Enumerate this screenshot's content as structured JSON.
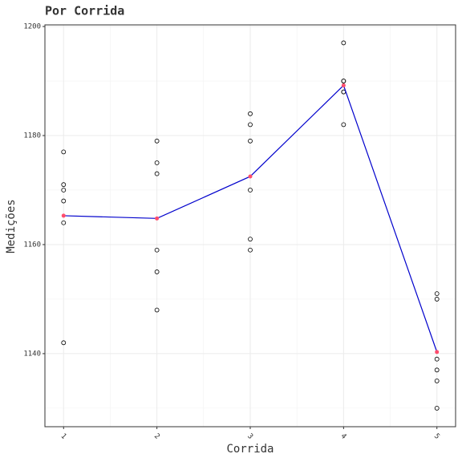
{
  "chart_data": {
    "type": "scatter",
    "title": "Por Corrida",
    "x_label": "Corrida",
    "y_label": "Medições",
    "x": [
      1,
      1,
      1,
      1,
      1,
      1,
      2,
      2,
      2,
      2,
      2,
      2,
      3,
      3,
      3,
      3,
      3,
      3,
      4,
      4,
      4,
      4,
      4,
      4,
      5,
      5,
      5,
      5,
      5,
      5
    ],
    "y": [
      1177,
      1171,
      1170,
      1168,
      1164,
      1142,
      1179,
      1175,
      1173,
      1159,
      1155,
      1148,
      1184,
      1182,
      1179,
      1170,
      1161,
      1159,
      1197,
      1190,
      1190,
      1188,
      1188,
      1182,
      1151,
      1150,
      1139,
      1137,
      1135,
      1130
    ],
    "point_color": "#000000",
    "mean_x": [
      1,
      2,
      3,
      4,
      5
    ],
    "mean_values": [
      1165.3,
      1164.8,
      1172.5,
      1189.2,
      1140.3
    ],
    "mean_line_color": "#0000cc",
    "mean_point_color": "#ff4d6d",
    "xlim": [
      0.8,
      5.2
    ],
    "xticks": [
      1,
      2,
      3,
      4,
      5
    ],
    "ylim": [
      1126.6,
      1200.3
    ],
    "yticks": [
      1140,
      1160,
      1180,
      1200
    ],
    "grid": true
  }
}
